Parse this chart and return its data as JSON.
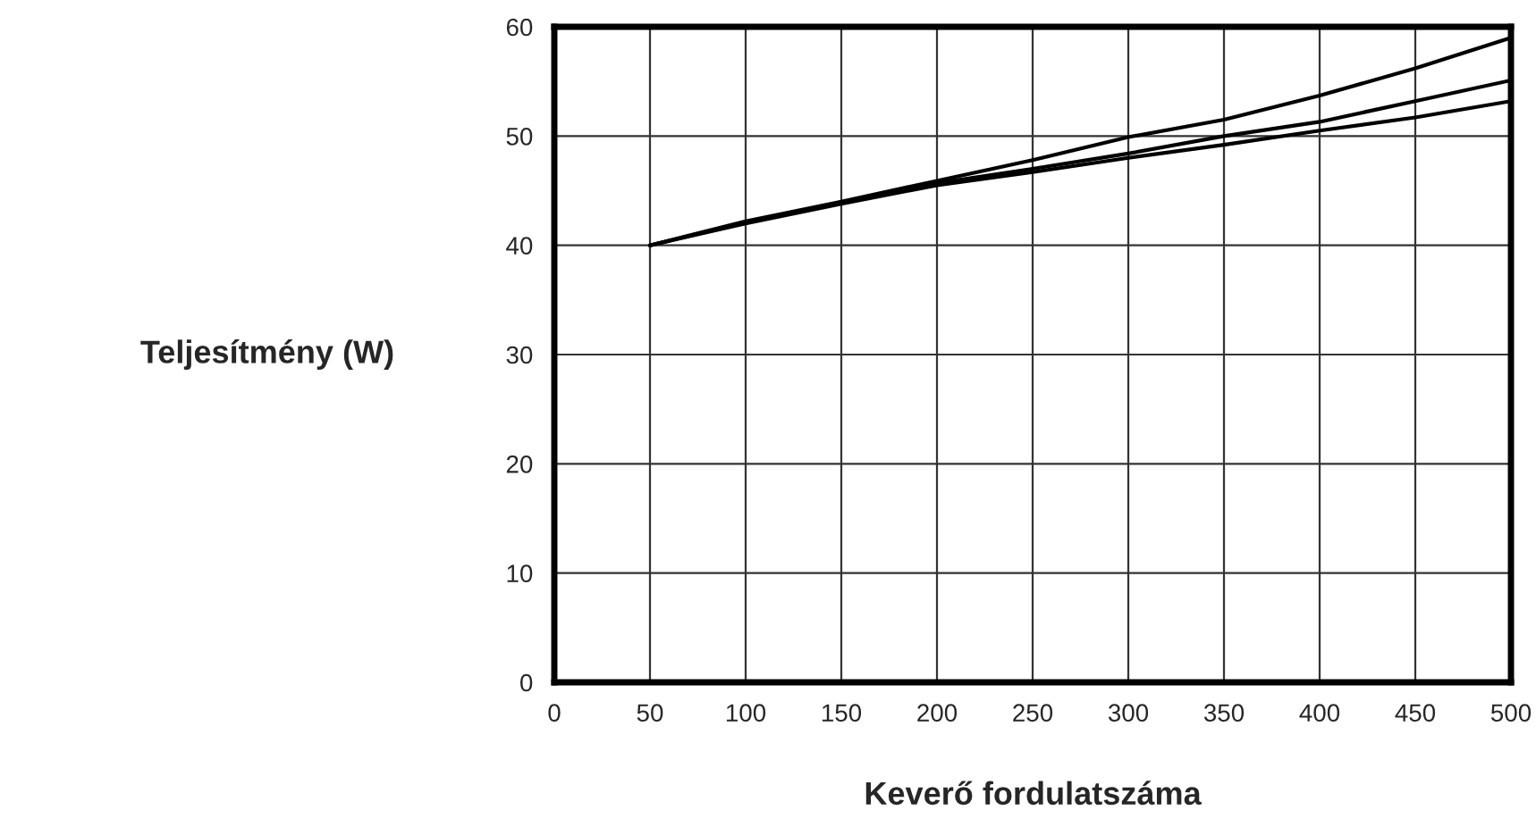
{
  "chart_data": {
    "type": "line",
    "xlabel": "Keverő fordulatszáma",
    "ylabel": "Teljesítmény (W)",
    "x": [
      50,
      100,
      150,
      200,
      250,
      300,
      350,
      400,
      450,
      500
    ],
    "series": [
      {
        "color": "#000000",
        "values": [
          40,
          42.2,
          44.0,
          45.9,
          47.8,
          49.9,
          51.5,
          53.7,
          56.2,
          59.0
        ]
      },
      {
        "color": "#000000",
        "values": [
          40,
          42.1,
          43.9,
          45.7,
          47.0,
          48.4,
          50.0,
          51.3,
          53.2,
          55.1
        ]
      },
      {
        "color": "#000000",
        "values": [
          40,
          42.0,
          43.8,
          45.5,
          46.7,
          48.0,
          49.2,
          50.5,
          51.7,
          53.2
        ]
      }
    ],
    "xlim": [
      0,
      500
    ],
    "ylim": [
      0,
      60
    ],
    "xticks": [
      0,
      50,
      100,
      150,
      200,
      250,
      300,
      350,
      400,
      450,
      500
    ],
    "yticks": [
      0,
      10,
      20,
      30,
      40,
      50,
      60
    ],
    "grid": true,
    "legend": false,
    "marker": "none",
    "line_style": "solid"
  }
}
